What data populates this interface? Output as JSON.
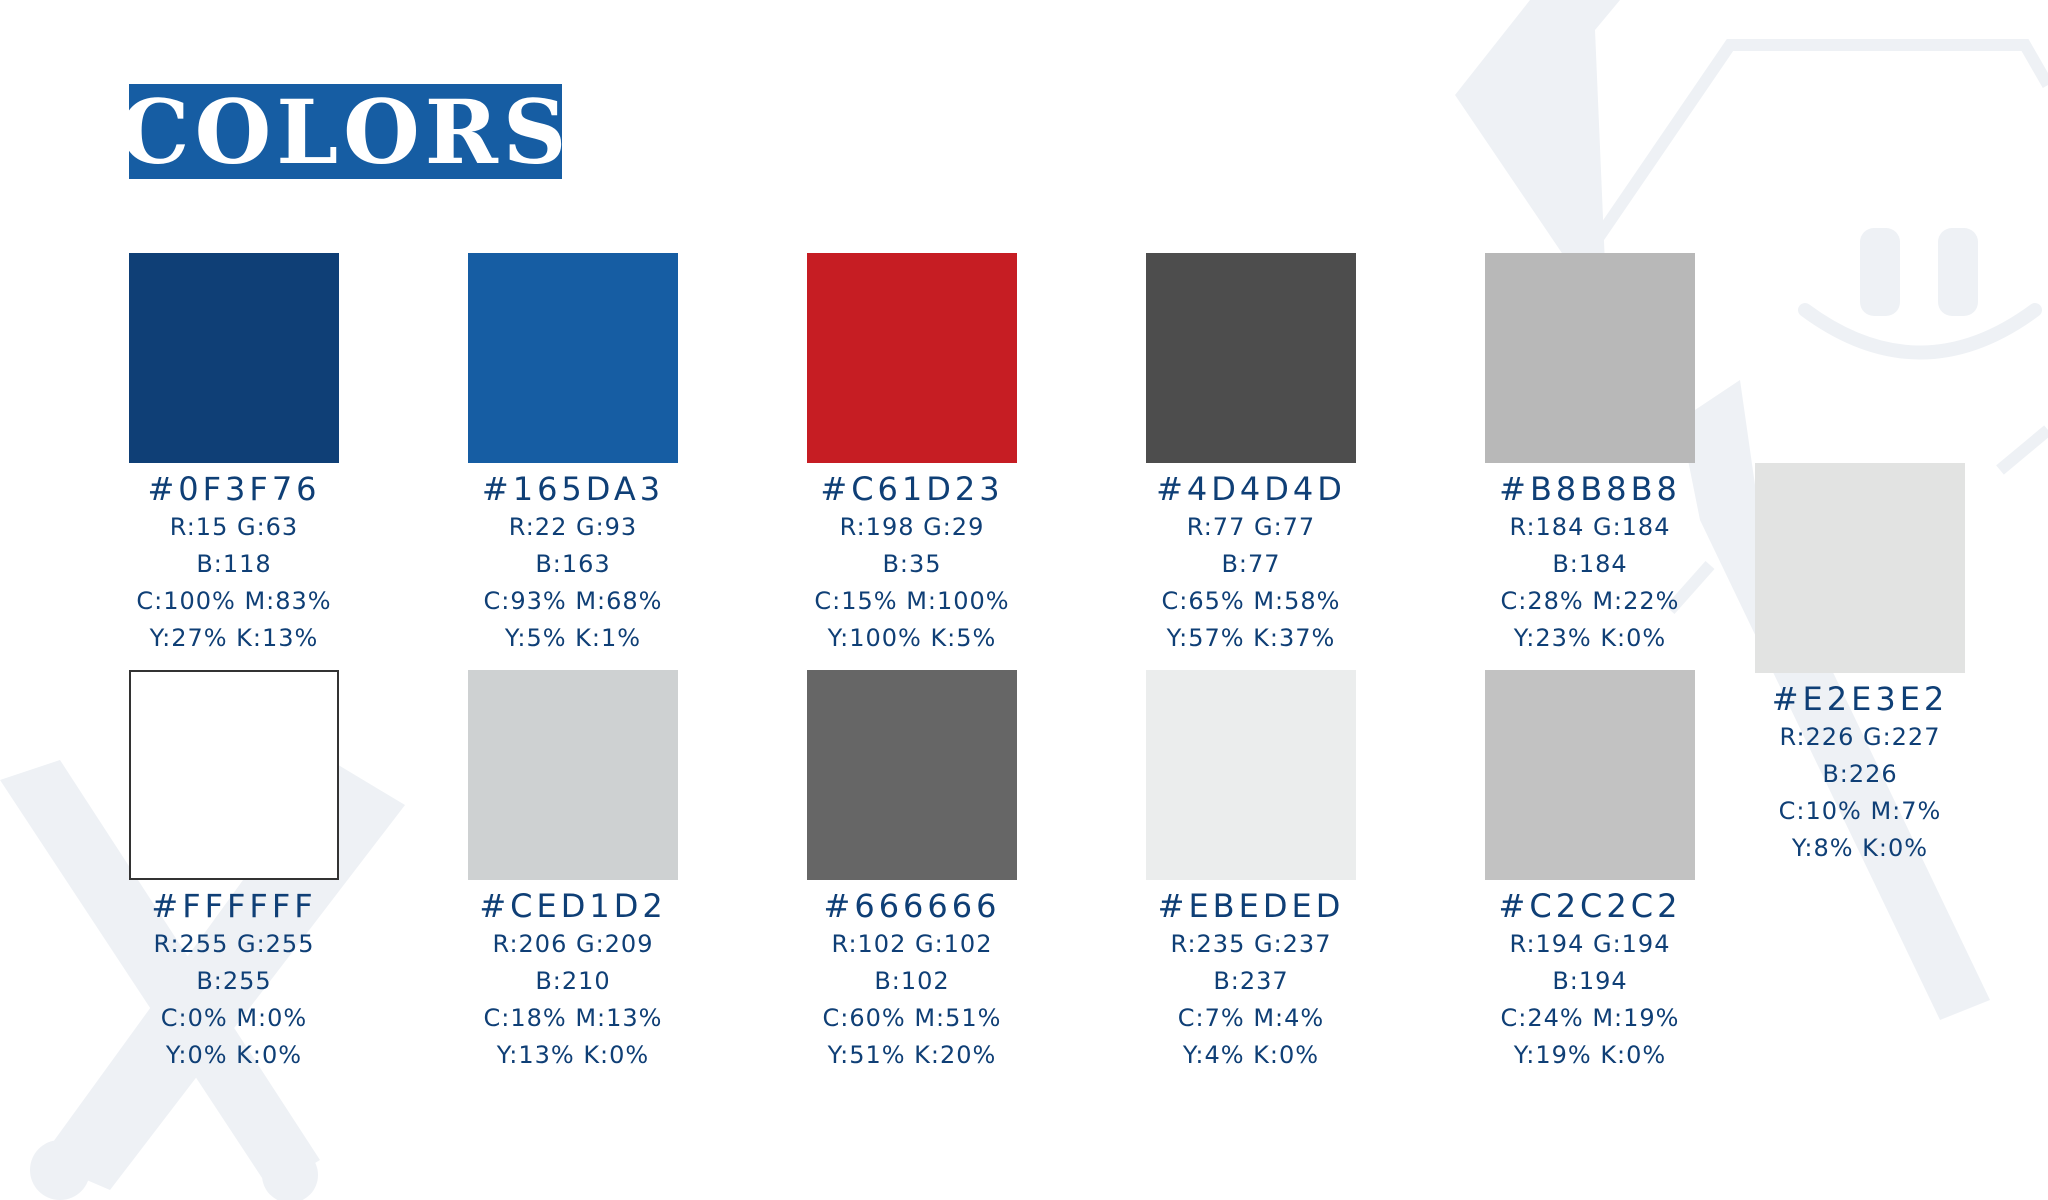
{
  "title": "COLORS",
  "colors": [
    {
      "hex_label": "#0F3F76",
      "rgb1": "R:15 G:63",
      "rgb2": "B:118",
      "cmyk1": "C:100% M:83%",
      "cmyk2": "Y:27% K:13%",
      "swatch": "#0F3F76"
    },
    {
      "hex_label": "#165DA3",
      "rgb1": "R:22 G:93",
      "rgb2": "B:163",
      "cmyk1": "C:93% M:68%",
      "cmyk2": "Y:5% K:1%",
      "swatch": "#165DA3"
    },
    {
      "hex_label": "#C61D23",
      "rgb1": "R:198 G:29",
      "rgb2": "B:35",
      "cmyk1": "C:15% M:100%",
      "cmyk2": "Y:100% K:5%",
      "swatch": "#C61D23"
    },
    {
      "hex_label": "#4D4D4D",
      "rgb1": "R:77 G:77",
      "rgb2": "B:77",
      "cmyk1": "C:65% M:58%",
      "cmyk2": "Y:57% K:37%",
      "swatch": "#4D4D4D"
    },
    {
      "hex_label": "#B8B8B8",
      "rgb1": "R:184 G:184",
      "rgb2": "B:184",
      "cmyk1": "C:28% M:22%",
      "cmyk2": "Y:23% K:0%",
      "swatch": "#B8B8B8"
    },
    {
      "hex_label": "#E2E3E2",
      "rgb1": "R:226 G:227",
      "rgb2": "B:226",
      "cmyk1": "C:10% M:7%",
      "cmyk2": "Y:8% K:0%",
      "swatch": "#E2E3E2"
    },
    {
      "hex_label": "#FFFFFF",
      "rgb1": "R:255 G:255",
      "rgb2": "B:255",
      "cmyk1": "C:0% M:0%",
      "cmyk2": "Y:0% K:0%",
      "swatch": "#FFFFFF"
    },
    {
      "hex_label": "#CED1D2",
      "rgb1": "R:206 G:209",
      "rgb2": "B:210",
      "cmyk1": "C:18% M:13%",
      "cmyk2": "Y:13% K:0%",
      "swatch": "#CED1D2"
    },
    {
      "hex_label": "#666666",
      "rgb1": "R:102 G:102",
      "rgb2": "B:102",
      "cmyk1": "C:60% M:51%",
      "cmyk2": "Y:51% K:20%",
      "swatch": "#666666"
    },
    {
      "hex_label": "#EBEDED",
      "rgb1": "R:235 G:237",
      "rgb2": "B:237",
      "cmyk1": "C:7% M:4%",
      "cmyk2": "Y:4% K:0%",
      "swatch": "#EBEDED"
    },
    {
      "hex_label": "#C2C2C2",
      "rgb1": "R:194 G:194",
      "rgb2": "B:194",
      "cmyk1": "C:24% M:19%",
      "cmyk2": "Y:19% K:0%",
      "swatch": "#C2C2C2"
    }
  ]
}
